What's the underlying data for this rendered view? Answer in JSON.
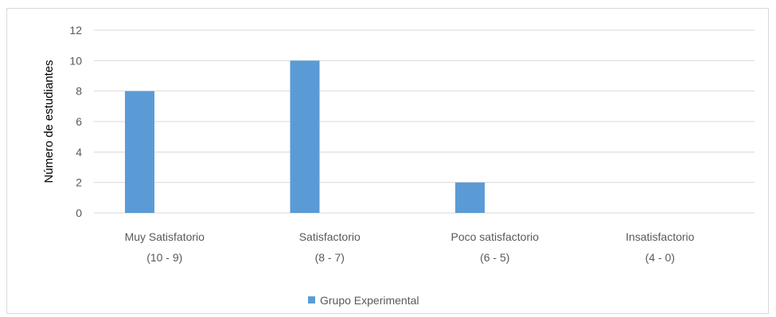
{
  "chart_data": {
    "type": "bar",
    "title": "",
    "xlabel": "",
    "ylabel": "Número de estudiantes",
    "ylim": [
      0,
      12
    ],
    "yticks": [
      0,
      2,
      4,
      6,
      8,
      10,
      12
    ],
    "grid": true,
    "legend_position": "bottom",
    "categories": [
      {
        "line1": "Muy Satisfatorio",
        "line2": "(10 - 9)"
      },
      {
        "line1": "Satisfactorio",
        "line2": "(8 - 7)"
      },
      {
        "line1": "Poco satisfactorio",
        "line2": "(6 - 5)"
      },
      {
        "line1": "Insatisfactorio",
        "line2": "(4 - 0)"
      }
    ],
    "series": [
      {
        "name": "Grupo Experimental",
        "color": "#5b9bd5",
        "values": [
          8,
          10,
          2,
          0
        ]
      }
    ]
  }
}
